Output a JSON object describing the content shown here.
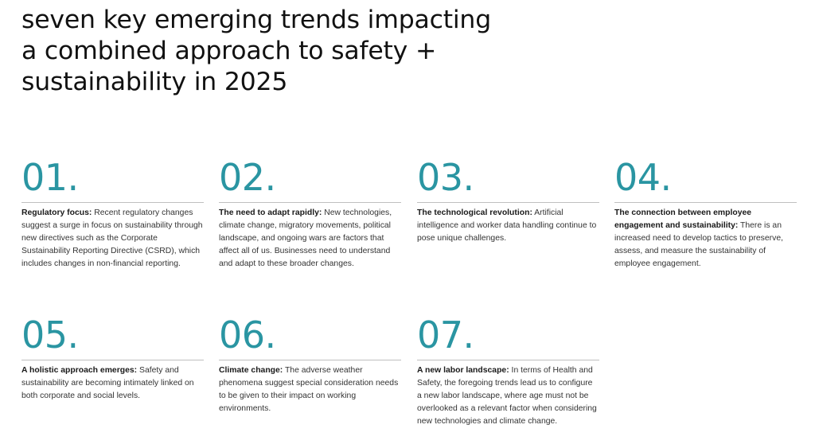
{
  "title_lines": [
    "seven key emerging trends impacting",
    "a combined approach to safety +",
    "sustainability in 2025"
  ],
  "trends": [
    {
      "number": "01.",
      "lead": "Regulatory focus:",
      "text": "  Recent regulatory changes suggest a surge in focus on sustainability through new directives such as the Corporate Sustainability Reporting Directive (CSRD), which includes changes in non-financial reporting."
    },
    {
      "number": "02.",
      "lead": "The need to adapt rapidly:",
      "text": " New technologies, climate change, migratory movements, political landscape, and ongoing wars are factors that affect all of us. Businesses need to understand and adapt to these broader changes."
    },
    {
      "number": "03.",
      "lead": "The technological revolution:",
      "text": " Artificial intelligence and worker data handling continue to pose unique challenges."
    },
    {
      "number": "04.",
      "lead": "The connection between employee engagement and sustainability:",
      "text": " There is an increased need to develop tactics to preserve, assess, and measure the sustainability of employee engagement."
    },
    {
      "number": "05.",
      "lead": " A holistic approach emerges:",
      "text": " Safety and sustainability are becoming intimately linked on both corporate and social levels."
    },
    {
      "number": "06.",
      "lead": "Climate change:",
      "text": " The adverse weather phenomena suggest special consideration needs to be given to their impact on working environments."
    },
    {
      "number": "07.",
      "lead": " A new labor landscape:",
      "text": " In terms of Health and Safety, the foregoing trends lead us to configure a new labor landscape, where age must not be overlooked as a relevant factor when considering new technologies and climate change."
    }
  ],
  "colors": {
    "accent": "#2a95a2",
    "heading": "#111111",
    "body_text": "#333333",
    "rule": "#bfbfbf"
  }
}
